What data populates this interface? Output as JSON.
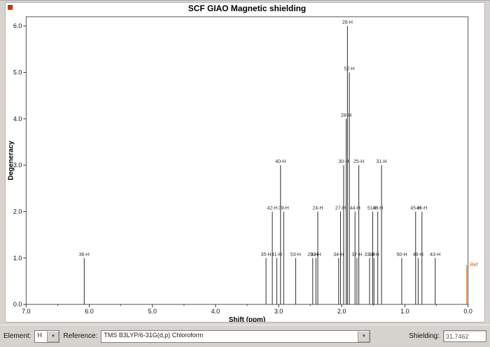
{
  "icons": {
    "dropdown_arrow": "▼"
  },
  "series_marker_color": "#cc3300",
  "chart_data": {
    "type": "bar",
    "style": "stick-spectrum",
    "title": "SCF GIAO Magnetic shielding",
    "xlabel": "Shift (ppm)",
    "ylabel": "Degeneracy",
    "xlim": [
      7.0,
      0.0
    ],
    "ylim": [
      0.0,
      6.2
    ],
    "x_tick_labels": [
      "7.0",
      "6.0",
      "5.0",
      "4.0",
      "3.0",
      "2.0",
      "1.0",
      "0.0"
    ],
    "y_tick_labels": [
      "0.0",
      "1.0",
      "2.0",
      "3.0",
      "4.0",
      "5.0",
      "6.0"
    ],
    "x_minor_tick_step": 0.5,
    "grid": false,
    "line_color": "#2b2b2b",
    "peaks": [
      {
        "label": "36-H",
        "ppm": 6.08,
        "degeneracy": 1
      },
      {
        "label": "35-H",
        "ppm": 3.2,
        "degeneracy": 1
      },
      {
        "label": "42-H",
        "ppm": 3.1,
        "degeneracy": 2
      },
      {
        "label": "41-H",
        "ppm": 3.03,
        "degeneracy": 1
      },
      {
        "label": "40-H",
        "ppm": 2.97,
        "degeneracy": 3
      },
      {
        "label": "39-H",
        "ppm": 2.92,
        "degeneracy": 2
      },
      {
        "label": "53-H",
        "ppm": 2.73,
        "degeneracy": 1
      },
      {
        "label": "29-H",
        "ppm": 2.46,
        "degeneracy": 1
      },
      {
        "label": "32-H",
        "ppm": 2.41,
        "degeneracy": 1
      },
      {
        "label": "24-H",
        "ppm": 2.38,
        "degeneracy": 2
      },
      {
        "label": "34-H",
        "ppm": 2.05,
        "degeneracy": 1
      },
      {
        "label": "27-H",
        "ppm": 2.02,
        "degeneracy": 2
      },
      {
        "label": "30-H",
        "ppm": 1.97,
        "degeneracy": 3
      },
      {
        "label": "28-H",
        "ppm": 1.93,
        "degeneracy": 4
      },
      {
        "label": "26-H",
        "ppm": 1.91,
        "degeneracy": 6
      },
      {
        "label": "52-H",
        "ppm": 1.88,
        "degeneracy": 5
      },
      {
        "label": "44-H",
        "ppm": 1.79,
        "degeneracy": 2
      },
      {
        "label": "37-H",
        "ppm": 1.76,
        "degeneracy": 1
      },
      {
        "label": "25-H",
        "ppm": 1.73,
        "degeneracy": 3
      },
      {
        "label": "33-H",
        "ppm": 1.56,
        "degeneracy": 1
      },
      {
        "label": "51-H",
        "ppm": 1.51,
        "degeneracy": 2
      },
      {
        "label": "38-H",
        "ppm": 1.49,
        "degeneracy": 1
      },
      {
        "label": "48-H",
        "ppm": 1.43,
        "degeneracy": 2
      },
      {
        "label": "31-H",
        "ppm": 1.37,
        "degeneracy": 3
      },
      {
        "label": "50-H",
        "ppm": 1.05,
        "degeneracy": 1
      },
      {
        "label": "45-H",
        "ppm": 0.83,
        "degeneracy": 2
      },
      {
        "label": "49-H",
        "ppm": 0.79,
        "degeneracy": 1
      },
      {
        "label": "46-H",
        "ppm": 0.73,
        "degeneracy": 2
      },
      {
        "label": "43-H",
        "ppm": 0.52,
        "degeneracy": 1
      }
    ],
    "reference_marker": {
      "label": "Ref",
      "ppm": 0.02,
      "degeneracy": 0.85,
      "color": "#c05a00"
    }
  },
  "toolbar": {
    "element_label": "Element:",
    "element_value": "H",
    "reference_label": "Reference:",
    "reference_value": "TMS B3LYP/6-31G(d,p) Chloroform",
    "shielding_label": "Shielding:",
    "shielding_value": "31.7462"
  }
}
